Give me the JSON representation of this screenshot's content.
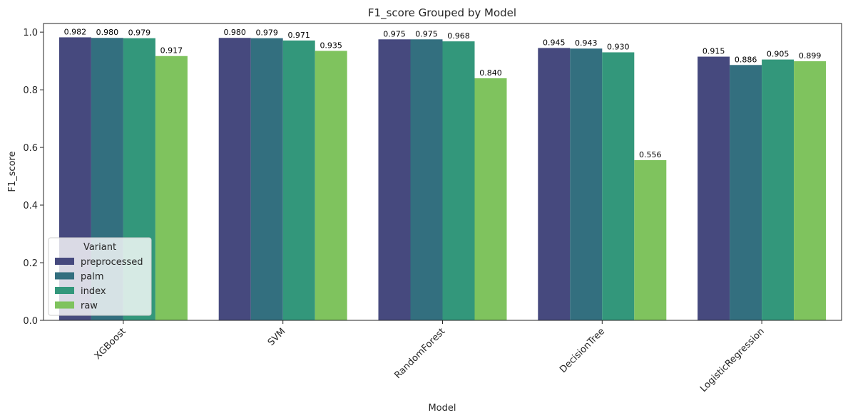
{
  "chart_data": {
    "type": "bar",
    "title": "F1_score Grouped by Model",
    "xlabel": "Model",
    "ylabel": "F1_score",
    "ylim": [
      0,
      1.03
    ],
    "yticks": [
      0.0,
      0.2,
      0.4,
      0.6,
      0.8,
      1.0
    ],
    "ytick_labels": [
      "0.0",
      "0.2",
      "0.4",
      "0.6",
      "0.8",
      "1.0"
    ],
    "categories": [
      "XGBoost",
      "SVM",
      "RandomForest",
      "DecisionTree",
      "LogisticRegression"
    ],
    "legend": {
      "title": "Variant",
      "placement": "lower-left"
    },
    "grid": false,
    "series": [
      {
        "name": "preprocessed",
        "color": "#46497e",
        "values": [
          0.982,
          0.98,
          0.975,
          0.945,
          0.915
        ],
        "labels": [
          "0.982",
          "0.980",
          "0.975",
          "0.945",
          "0.915"
        ]
      },
      {
        "name": "palm",
        "color": "#336f7f",
        "values": [
          0.98,
          0.979,
          0.975,
          0.943,
          0.886
        ],
        "labels": [
          "0.980",
          "0.979",
          "0.975",
          "0.943",
          "0.886"
        ]
      },
      {
        "name": "index",
        "color": "#33977b",
        "values": [
          0.979,
          0.971,
          0.968,
          0.93,
          0.905
        ],
        "labels": [
          "0.979",
          "0.971",
          "0.968",
          "0.930",
          "0.905"
        ]
      },
      {
        "name": "raw",
        "color": "#7fc35e",
        "values": [
          0.917,
          0.935,
          0.84,
          0.556,
          0.899
        ],
        "labels": [
          "0.917",
          "0.935",
          "0.840",
          "0.556",
          "0.899"
        ]
      }
    ]
  }
}
